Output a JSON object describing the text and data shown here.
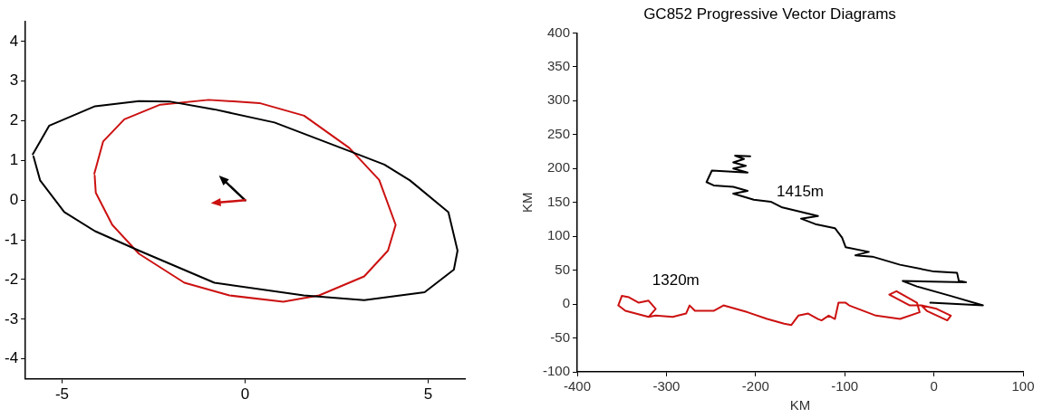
{
  "chart_data": [
    {
      "type": "line",
      "xlim": [
        -6,
        6
      ],
      "xticks": [
        -5,
        0,
        5
      ],
      "ylim": [
        -4.5,
        4.5
      ],
      "yticks": [
        -4,
        -3,
        -2,
        -1,
        0,
        1,
        2,
        3,
        4
      ],
      "grid": false,
      "legend": false,
      "series": [
        {
          "color": "#000000",
          "x": [
            -5.8,
            -5.35,
            -4.1,
            -2.9,
            -2.07,
            -0.84,
            0.8,
            2.84,
            3.8,
            4.5,
            5.55,
            5.8,
            5.7,
            4.9,
            3.25,
            1.6,
            -0.84,
            -2.9,
            -4.1,
            -4.94,
            -5.6,
            -5.78
          ],
          "values": [
            1.16,
            1.88,
            2.37,
            2.5,
            2.49,
            2.29,
            1.96,
            1.24,
            0.9,
            0.5,
            -0.3,
            -1.27,
            -1.75,
            -2.32,
            -2.52,
            -2.4,
            -2.08,
            -1.27,
            -0.78,
            -0.3,
            0.5,
            1.1
          ]
        },
        {
          "color": "#cc1111",
          "x": [
            -4.12,
            -3.88,
            -3.3,
            -2.32,
            -1.0,
            0.39,
            1.61,
            2.84,
            3.66,
            4.11,
            3.9,
            3.25,
            2.02,
            1.04,
            -0.43,
            -1.66,
            -2.9,
            -3.63,
            -4.08,
            -4.11
          ],
          "values": [
            0.67,
            1.48,
            2.04,
            2.41,
            2.53,
            2.45,
            2.13,
            1.32,
            0.51,
            -0.62,
            -1.27,
            -1.92,
            -2.4,
            -2.56,
            -2.4,
            -2.08,
            -1.35,
            -0.62,
            0.19,
            0.62
          ]
        }
      ]
    },
    {
      "type": "line",
      "title": "GC852 Progressive Vector Diagrams",
      "xlabel": "KM",
      "ylabel": "KM",
      "xlim": [
        -400,
        100
      ],
      "xticks": [
        -400,
        -300,
        -200,
        -100,
        0,
        100
      ],
      "ylim": [
        -100,
        400
      ],
      "yticks": [
        -100,
        -50,
        0,
        50,
        100,
        150,
        200,
        250,
        300,
        350,
        400
      ],
      "grid": false,
      "legend": false,
      "annotations": [
        "1415m",
        "1320m"
      ],
      "series": [
        {
          "color": "#000000",
          "x": [
            -206,
            -223,
            -213,
            -225,
            -211,
            -225,
            -209,
            -249,
            -255,
            -247,
            -225,
            -209,
            -225,
            -202,
            -183,
            -171,
            -152,
            -130,
            -149,
            -133,
            -111,
            -103,
            -99,
            -73,
            -88,
            -69,
            -38,
            0,
            26,
            28,
            36,
            -35,
            -19,
            19,
            55,
            -4
          ],
          "values": [
            218,
            219,
            214,
            209,
            204,
            200,
            194,
            197,
            180,
            175,
            173,
            167,
            163,
            154,
            151,
            143,
            137,
            130,
            126,
            118,
            112,
            98,
            84,
            77,
            72,
            70,
            58,
            48,
            46,
            34,
            32,
            34,
            26,
            12,
            -2,
            2
          ]
        },
        {
          "color": "#cc1111",
          "x": [
            -350,
            -354,
            -346,
            -320,
            -312,
            -320,
            -331,
            -342,
            -350,
            -354,
            -346,
            -320,
            -312,
            -293,
            -278,
            -274,
            -268,
            -247,
            -236,
            -209,
            -187,
            -168,
            -160,
            -152,
            -141,
            -130,
            -126,
            -118,
            -111,
            -107,
            -99,
            -95,
            -65,
            -38,
            -16,
            -19,
            -42,
            -50,
            -27,
            -14,
            3,
            19,
            15,
            -8,
            -14
          ],
          "values": [
            12,
            -2,
            -10,
            -19,
            -7,
            5,
            2,
            10,
            12,
            -2,
            -10,
            -19,
            -17,
            -19,
            -14,
            -2,
            -10,
            -10,
            -2,
            -12,
            -22,
            -29,
            -31,
            -17,
            -14,
            -22,
            -24,
            -17,
            -22,
            2,
            2,
            -2,
            -17,
            -22,
            -12,
            2,
            19,
            14,
            -2,
            -2,
            -7,
            -17,
            -24,
            -10,
            -2
          ]
        }
      ]
    }
  ]
}
